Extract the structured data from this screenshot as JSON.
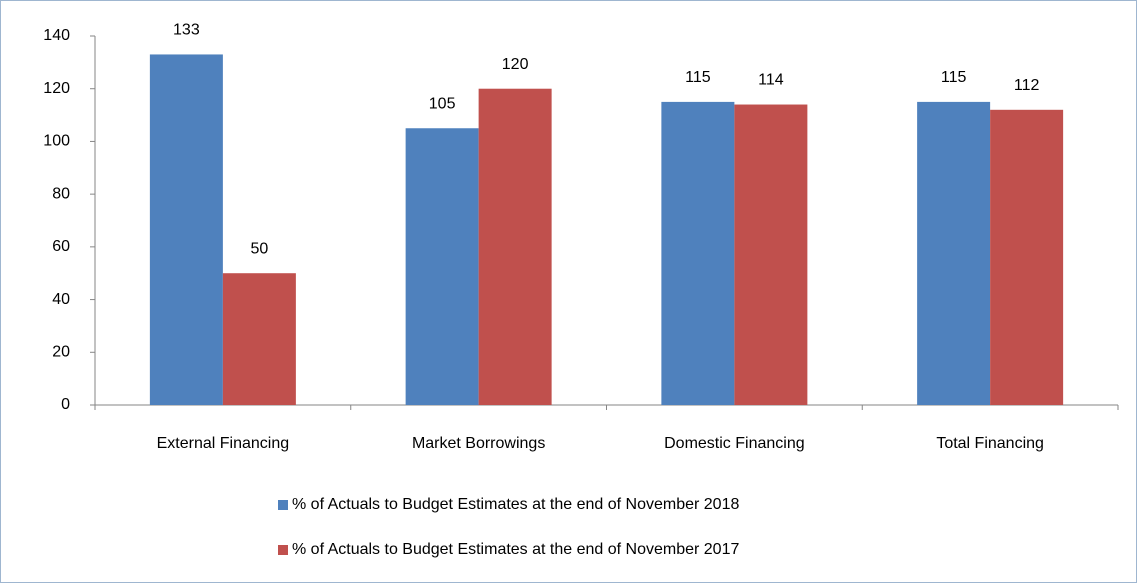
{
  "chart_data": {
    "type": "bar",
    "categories": [
      "External Financing",
      "Market Borrowings",
      "Domestic Financing",
      "Total Financing"
    ],
    "series": [
      {
        "name": "% of Actuals to Budget Estimates at the end of November 2018",
        "color": "#4f81bd",
        "values": [
          133,
          105,
          115,
          115
        ]
      },
      {
        "name": "% of Actuals to Budget Estimates at the end of November 2017",
        "color": "#c0504d",
        "values": [
          50,
          120,
          114,
          112
        ]
      }
    ],
    "ylim": [
      0,
      140
    ],
    "yticks": [
      0,
      20,
      40,
      60,
      80,
      100,
      120,
      140
    ],
    "grid": false,
    "legend": "bottom"
  }
}
